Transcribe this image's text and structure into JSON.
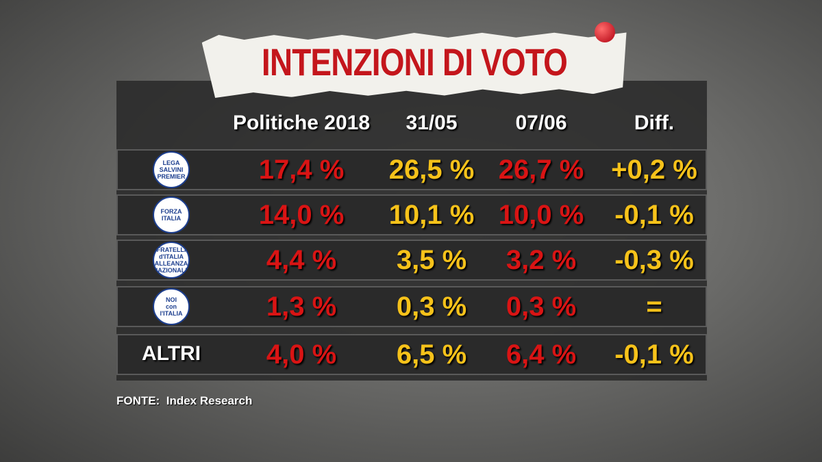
{
  "title": "INTENZIONI DI VOTO",
  "table": {
    "header": [
      "Politiche 2018",
      "31/05",
      "07/06",
      "Diff."
    ],
    "rows": [
      {
        "logo": [
          "LEGA",
          "SALVINI",
          "PREMIER"
        ],
        "values": [
          "17,4 %",
          "26,5 %",
          "26,7 %",
          "+0,2 %"
        ]
      },
      {
        "logo": [
          "FORZA",
          "ITALIA"
        ],
        "values": [
          "14,0 %",
          "10,1 %",
          "10,0 %",
          "-0,1 %"
        ]
      },
      {
        "logo": [
          "FRATELLI",
          "d'ITALIA",
          "ALLEANZA NAZIONALE"
        ],
        "values": [
          "4,4 %",
          "3,5 %",
          "3,2 %",
          "-0,3 %"
        ]
      },
      {
        "logo": [
          "NOI",
          "con",
          "l'ITALIA"
        ],
        "values": [
          "1,3 %",
          "0,3 %",
          "0,3 %",
          "="
        ]
      },
      {
        "label": "ALTRI",
        "values": [
          "4,0 %",
          "6,5 %",
          "6,4 %",
          "-0,1 %"
        ]
      }
    ]
  },
  "source": "FONTE:  Index Research"
}
